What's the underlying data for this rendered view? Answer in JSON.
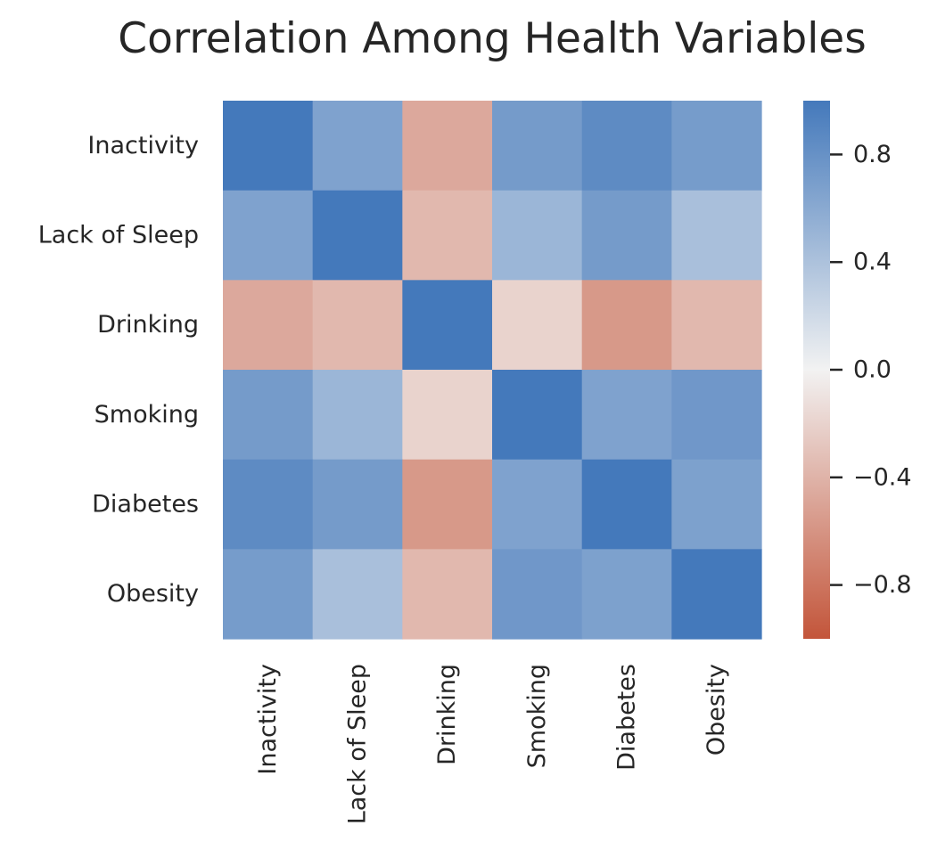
{
  "chart_data": {
    "type": "heatmap",
    "title": "Correlation Among Health Variables",
    "row_labels": [
      "Inactivity",
      "Lack of Sleep",
      "Drinking",
      "Smoking",
      "Diabetes",
      "Obesity"
    ],
    "col_labels": [
      "Inactivity",
      "Lack of Sleep",
      "Drinking",
      "Smoking",
      "Diabetes",
      "Obesity"
    ],
    "values": [
      [
        1.0,
        0.66,
        -0.47,
        0.72,
        0.85,
        0.71
      ],
      [
        0.66,
        1.0,
        -0.37,
        0.5,
        0.72,
        0.42
      ],
      [
        -0.47,
        -0.37,
        1.0,
        -0.2,
        -0.57,
        -0.37
      ],
      [
        0.72,
        0.5,
        -0.2,
        1.0,
        0.66,
        0.75
      ],
      [
        0.85,
        0.72,
        -0.57,
        0.66,
        1.0,
        0.67
      ],
      [
        0.71,
        0.42,
        -0.37,
        0.75,
        0.67,
        1.0
      ]
    ],
    "vmin": -1.0,
    "vmax": 1.0,
    "colorbar": {
      "ticks": [
        0.8,
        0.4,
        0.0,
        -0.4,
        -0.8
      ],
      "tick_labels": [
        "0.8",
        "0.4",
        "0.0",
        "−0.4",
        "−0.8"
      ]
    },
    "colormap": {
      "negative_end": "#c3553a",
      "center": "#f2f2f2",
      "positive_end": "#4479bb"
    }
  }
}
